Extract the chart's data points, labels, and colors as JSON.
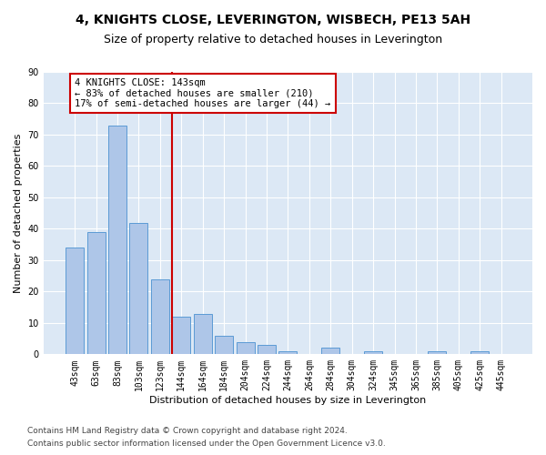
{
  "title": "4, KNIGHTS CLOSE, LEVERINGTON, WISBECH, PE13 5AH",
  "subtitle": "Size of property relative to detached houses in Leverington",
  "xlabel": "Distribution of detached houses by size in Leverington",
  "ylabel": "Number of detached properties",
  "categories": [
    "43sqm",
    "63sqm",
    "83sqm",
    "103sqm",
    "123sqm",
    "144sqm",
    "164sqm",
    "184sqm",
    "204sqm",
    "224sqm",
    "244sqm",
    "264sqm",
    "284sqm",
    "304sqm",
    "324sqm",
    "345sqm",
    "365sqm",
    "385sqm",
    "405sqm",
    "425sqm",
    "445sqm"
  ],
  "values": [
    34,
    39,
    73,
    42,
    24,
    12,
    13,
    6,
    4,
    3,
    1,
    0,
    2,
    0,
    1,
    0,
    0,
    1,
    0,
    1,
    0
  ],
  "bar_color": "#aec6e8",
  "bar_edge_color": "#5b9bd5",
  "property_line_index": 5,
  "annotation_title": "4 KNIGHTS CLOSE: 143sqm",
  "annotation_line1": "← 83% of detached houses are smaller (210)",
  "annotation_line2": "17% of semi-detached houses are larger (44) →",
  "annotation_box_color": "#ffffff",
  "annotation_box_edge": "#cc0000",
  "property_line_color": "#cc0000",
  "background_color": "#ffffff",
  "plot_background": "#dce8f5",
  "grid_color": "#ffffff",
  "ylim": [
    0,
    90
  ],
  "yticks": [
    0,
    10,
    20,
    30,
    40,
    50,
    60,
    70,
    80,
    90
  ],
  "footer1": "Contains HM Land Registry data © Crown copyright and database right 2024.",
  "footer2": "Contains public sector information licensed under the Open Government Licence v3.0.",
  "title_fontsize": 10,
  "subtitle_fontsize": 9,
  "axis_label_fontsize": 8,
  "tick_fontsize": 7,
  "annotation_fontsize": 7.5,
  "footer_fontsize": 6.5
}
